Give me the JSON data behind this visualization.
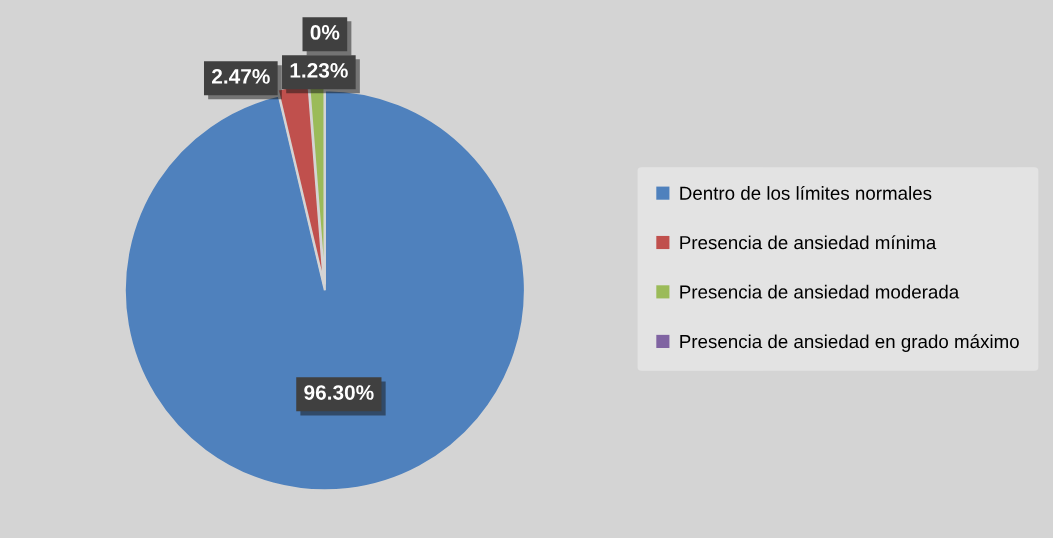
{
  "chart_data": {
    "type": "pie",
    "categories": [
      "Dentro de los límites normales",
      "Presencia de ansiedad mínima",
      "Presencia de ansiedad moderada",
      "Presencia de ansiedad en grado máximo"
    ],
    "values": [
      96.3,
      2.47,
      1.23,
      0
    ],
    "value_labels": [
      "96.30%",
      "2.47%",
      "1.23%",
      "0%"
    ],
    "colors": [
      "#4f81bd",
      "#c0504d",
      "#9bbb59",
      "#8064a2"
    ],
    "legend": "right"
  }
}
